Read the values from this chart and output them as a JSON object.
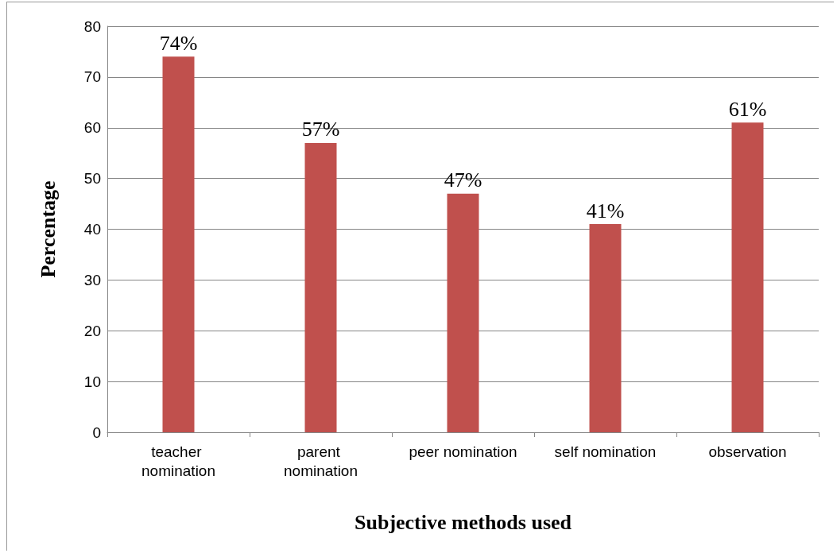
{
  "chart_data": {
    "type": "bar",
    "xlabel": "Subjective methods used",
    "ylabel": "Percentage",
    "categories": [
      "teacher nomination",
      "parent nomination",
      "peer nomination",
      "self nomination",
      "observation"
    ],
    "values": [
      74,
      57,
      47,
      41,
      61
    ],
    "value_labels": [
      "74%",
      "57%",
      "47%",
      "41%",
      "61%"
    ],
    "color": "#c0504d",
    "ylim": [
      0,
      80
    ],
    "yticks": [
      0,
      10,
      20,
      30,
      40,
      50,
      60,
      70,
      80
    ],
    "grid": "y"
  }
}
